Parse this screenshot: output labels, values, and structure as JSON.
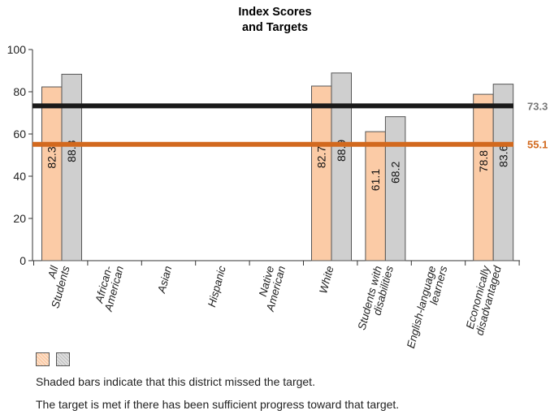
{
  "title_line1": "Index Scores",
  "title_line2": "and Targets",
  "notes": [
    "Shaded bars indicate that this district missed the target.",
    "The target is met if there has been sufficient progress toward that target."
  ],
  "colors": {
    "bar1": "#fbcba6",
    "bar2": "#cfcfcf",
    "bar_outline": "#555555",
    "target_black": "#1a1a1a",
    "target_orange": "#d2691e",
    "target_black_label": "#777777",
    "target_orange_label": "#d2691e"
  },
  "chart_data": {
    "type": "bar",
    "title": "Index Scores and Targets",
    "ylim": [
      0,
      100
    ],
    "yticks": [
      0,
      20,
      40,
      60,
      80,
      100
    ],
    "grid": false,
    "categories": [
      [
        "All",
        "Students"
      ],
      [
        "African-",
        "American"
      ],
      [
        "Asian"
      ],
      [
        "Hispanic"
      ],
      [
        "Native",
        "American"
      ],
      [
        "White"
      ],
      [
        "Students with",
        "disabilities"
      ],
      [
        "English-language",
        "learners"
      ],
      [
        "Economically",
        "disadvantaged"
      ]
    ],
    "series": [
      {
        "values": [
          82.3,
          null,
          null,
          null,
          null,
          82.7,
          61.1,
          null,
          78.8
        ]
      },
      {
        "values": [
          88.3,
          null,
          null,
          null,
          null,
          88.9,
          68.2,
          null,
          83.6
        ]
      }
    ],
    "targets": [
      {
        "value": 73.3,
        "label": "73.3",
        "color": "#1a1a1a"
      },
      {
        "value": 55.1,
        "label": "55.1",
        "color": "#d2691e"
      }
    ]
  }
}
